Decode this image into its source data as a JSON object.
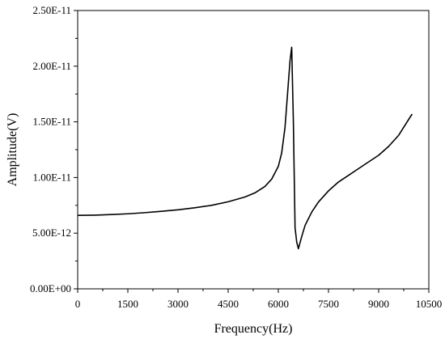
{
  "chart_data": {
    "type": "line",
    "title": "",
    "xlabel": "Frequency(Hz)",
    "ylabel": "Amplitude(V)",
    "xlim": [
      0,
      10500
    ],
    "ylim": [
      0,
      2.5e-11
    ],
    "x_ticks": [
      0,
      1500,
      3000,
      4500,
      6000,
      7500,
      9000,
      10500
    ],
    "x_tick_labels": [
      "0",
      "1500",
      "3000",
      "4500",
      "6000",
      "7500",
      "9000",
      "10500"
    ],
    "y_ticks": [
      0,
      5e-12,
      1e-11,
      1.5e-11,
      2e-11,
      2.5e-11
    ],
    "y_tick_labels": [
      "0.00E+00",
      "5.00E-12",
      "1.00E-11",
      "1.50E-11",
      "2.00E-11",
      "2.50E-11"
    ],
    "grid": false,
    "legend": "none",
    "line_color": "#000000",
    "series": [
      {
        "x": [
          0,
          500,
          1000,
          1500,
          2000,
          2500,
          3000,
          3500,
          4000,
          4500,
          5000,
          5300,
          5600,
          5800,
          6000,
          6100,
          6200,
          6300,
          6350,
          6400,
          6450,
          6500,
          6550,
          6600,
          6700,
          6800,
          7000,
          7200,
          7500,
          7800,
          8100,
          8400,
          8700,
          9000,
          9300,
          9600,
          10000
        ],
        "y": [
          6.6e-12,
          6.62e-12,
          6.67e-12,
          6.74e-12,
          6.84e-12,
          6.96e-12,
          7.1e-12,
          7.28e-12,
          7.5e-12,
          7.82e-12,
          8.25e-12,
          8.62e-12,
          9.2e-12,
          9.85e-12,
          1.1e-11,
          1.22e-11,
          1.45e-11,
          1.85e-11,
          2.05e-11,
          2.17e-11,
          1.5e-11,
          5.5e-12,
          4.2e-12,
          3.6e-12,
          4.7e-12,
          5.7e-12,
          6.9e-12,
          7.8e-12,
          8.8e-12,
          9.6e-12,
          1.02e-11,
          1.08e-11,
          1.14e-11,
          1.2e-11,
          1.28e-11,
          1.38e-11,
          1.57e-11
        ]
      }
    ]
  }
}
